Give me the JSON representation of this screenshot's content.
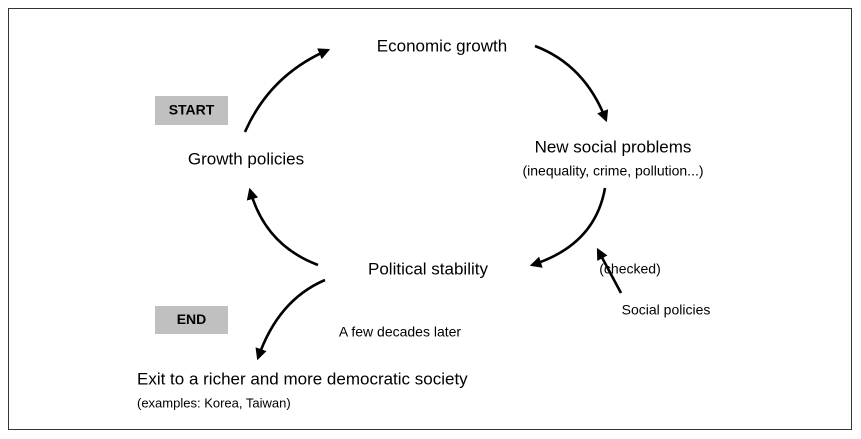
{
  "nodes": [
    {
      "label": "Economic growth"
    },
    {
      "label": "New social problems",
      "note": "(inequality, crime, pollution...)"
    },
    {
      "label": "Political stability"
    },
    {
      "label": "Growth policies"
    },
    {
      "label": "Exit to a richer and more democratic society",
      "note": "(examples: Korea, Taiwan)"
    }
  ],
  "badges": {
    "start": "START",
    "end": "END"
  },
  "annotations": {
    "checked": "(checked)",
    "social_policies": "Social policies",
    "later": "A few decades later"
  }
}
